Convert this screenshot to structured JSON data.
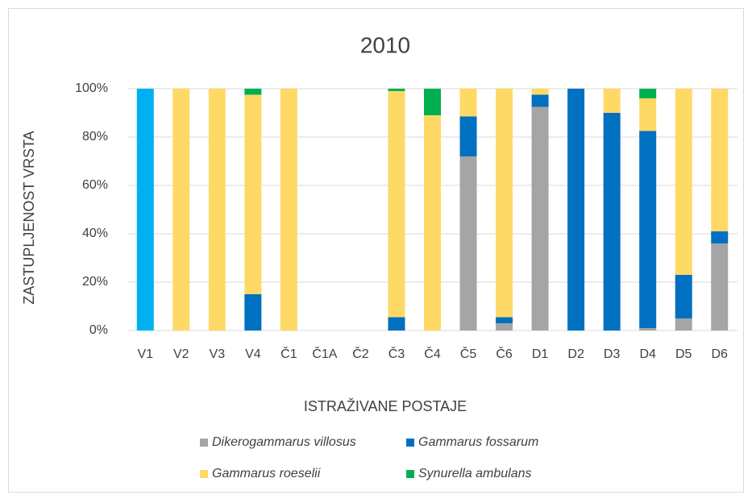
{
  "chart_data": {
    "type": "stacked_bar",
    "title": "2010",
    "y_label": "ZASTUPLJENOST VRSTA",
    "x_label": "ISTRAŽIVANE POSTAJE",
    "categories": [
      "V1",
      "V2",
      "V3",
      "V4",
      "Č1",
      "Č1A",
      "Č2",
      "Č3",
      "Č4",
      "Č5",
      "Č6",
      "D1",
      "D2",
      "D3",
      "D4",
      "D5",
      "D6"
    ],
    "series": [
      {
        "name": "Dikerogammarus villosus",
        "color": "#a5a5a5",
        "values": [
          0,
          0,
          0,
          0,
          0,
          0,
          0,
          0,
          0,
          72,
          3,
          92.5,
          0,
          0,
          1,
          5,
          36
        ]
      },
      {
        "name": "Gammarus fossarum",
        "color": "#0070c0",
        "point_colors": [
          "#00b0f0",
          null,
          null,
          null,
          null,
          null,
          null,
          null,
          null,
          null,
          null,
          null,
          null,
          null,
          null,
          null,
          null
        ],
        "values": [
          100,
          0,
          0,
          15,
          0,
          0,
          0,
          5.5,
          0,
          16.5,
          2.5,
          5,
          100,
          90,
          81.5,
          18,
          5
        ]
      },
      {
        "name": "Gammarus roeselii",
        "color": "#ffd966",
        "values": [
          0,
          100,
          100,
          82.5,
          100,
          0,
          0,
          93.5,
          89,
          11.5,
          94.5,
          2.5,
          0,
          10,
          13.5,
          77,
          59
        ]
      },
      {
        "name": "Synurella ambulans",
        "color": "#00b050",
        "values": [
          0,
          0,
          0,
          2.5,
          0,
          0,
          0,
          1,
          11,
          0,
          0,
          0,
          0,
          0,
          4,
          0,
          0
        ]
      }
    ],
    "ylim": [
      0,
      100
    ],
    "yticks": [
      {
        "value": 0,
        "label": "0%"
      },
      {
        "value": 20,
        "label": "20%"
      },
      {
        "value": 40,
        "label": "40%"
      },
      {
        "value": 60,
        "label": "60%"
      },
      {
        "value": 80,
        "label": "80%"
      },
      {
        "value": 100,
        "label": "100%"
      }
    ],
    "grid": true
  }
}
